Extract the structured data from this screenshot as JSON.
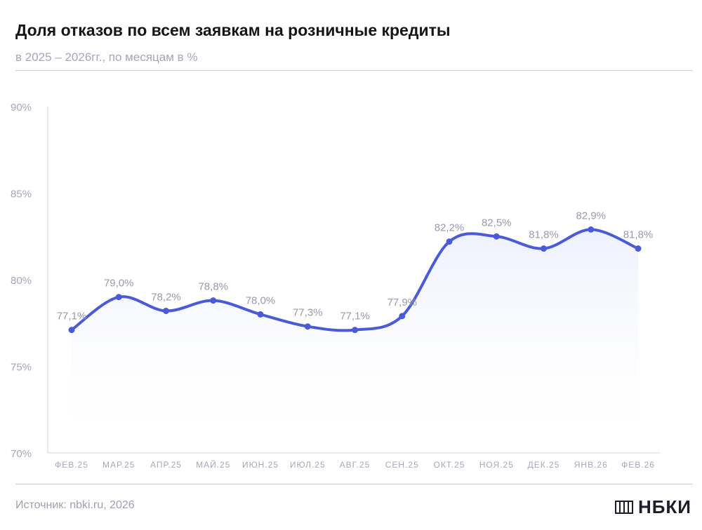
{
  "header": {
    "title": "Доля отказов по всем заявкам на розничные кредиты",
    "subtitle": "в 2025 – 2026гг., по месяцам в %"
  },
  "footer": {
    "source": "Источник: nbki.ru, 2026",
    "logo_text": "НБКИ"
  },
  "colors": {
    "line": "#4a5bd9",
    "axis_text": "#a8a6b8",
    "label_text": "#9a98ac",
    "area_top": "#eceffd"
  },
  "chart_data": {
    "type": "line",
    "title": "Доля отказов по всем заявкам на розничные кредиты",
    "subtitle": "в 2025 – 2026гг., по месяцам в %",
    "categories": [
      "ФЕВ.25",
      "МАР.25",
      "АПР.25",
      "МАЙ.25",
      "ИЮН.25",
      "ИЮЛ.25",
      "АВГ.25",
      "СЕН.25",
      "ОКТ.25",
      "НОЯ.25",
      "ДЕК.25",
      "ЯНВ.26",
      "ФЕВ.26"
    ],
    "values": [
      77.1,
      79.0,
      78.2,
      78.8,
      78.0,
      77.3,
      77.1,
      77.9,
      82.2,
      82.5,
      81.8,
      82.9,
      81.8
    ],
    "value_labels": [
      "77,1%",
      "79,0%",
      "78,2%",
      "78,8%",
      "78,0%",
      "77,3%",
      "77,1%",
      "77,9%",
      "82,2%",
      "82,5%",
      "81,8%",
      "82,9%",
      "81,8%"
    ],
    "y_ticks": [
      70,
      75,
      80,
      85,
      90
    ],
    "y_tick_labels": [
      "70%",
      "75%",
      "80%",
      "85%",
      "90%"
    ],
    "ylim": [
      70,
      90
    ],
    "grid": false,
    "legend": "none"
  }
}
